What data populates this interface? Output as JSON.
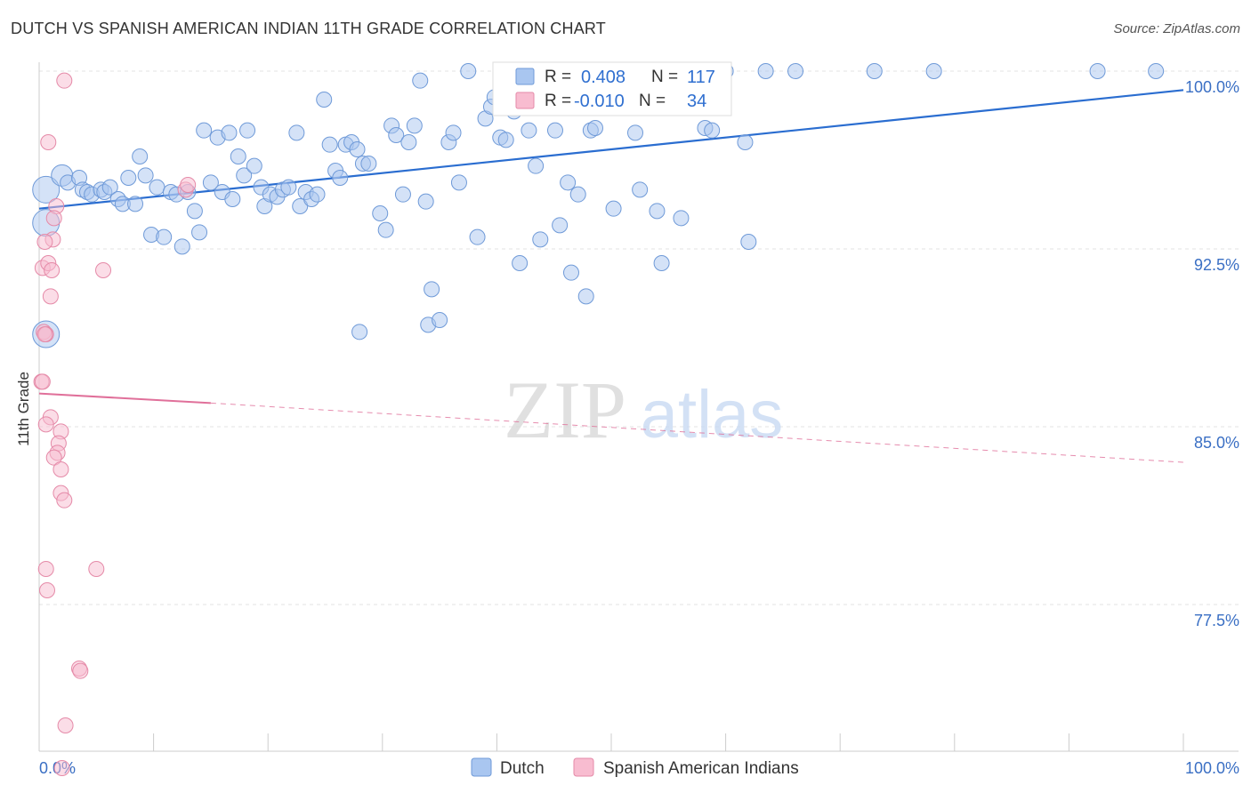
{
  "chart_data": {
    "type": "scatter",
    "title": "DUTCH VS SPANISH AMERICAN INDIAN 11TH GRADE CORRELATION CHART",
    "source": "Source: ZipAtlas.com",
    "ylabel": "11th Grade",
    "xlim": [
      0,
      100
    ],
    "ylim": [
      70.5,
      101.0
    ],
    "y_ticks": [
      100.0,
      92.5,
      85.0,
      77.5
    ],
    "y_tick_labels": [
      "100.0%",
      "92.5%",
      "85.0%",
      "77.5%"
    ],
    "x_tick_labels": [
      "0.0%",
      "100.0%"
    ],
    "watermark": {
      "part1": "ZIP",
      "part2": "atlas"
    },
    "legend": {
      "r_label": "R =",
      "n_label": "N =",
      "entries": [
        {
          "name": "Dutch",
          "r": "0.408",
          "n": "117",
          "color": "#a9c6f0",
          "stroke": "#6f9ad8"
        },
        {
          "name": "Spanish American Indians",
          "r": "-0.010",
          "n": "34",
          "color": "#f8bcd0",
          "stroke": "#e58aa8"
        }
      ]
    },
    "series": [
      {
        "name": "Dutch",
        "color": "#a9c6f0",
        "stroke": "#6f9ad8",
        "trend": {
          "x": [
            0,
            100
          ],
          "y": [
            94.2,
            99.2
          ],
          "color": "#2a6dd0"
        },
        "points": [
          [
            0.6,
            95.0,
            3
          ],
          [
            0.6,
            93.6,
            3
          ],
          [
            0.6,
            88.9,
            3
          ],
          [
            2.0,
            95.6,
            2
          ],
          [
            2.5,
            95.3,
            1
          ],
          [
            3.5,
            95.5,
            1
          ],
          [
            3.8,
            95.0,
            1
          ],
          [
            4.2,
            94.9,
            1
          ],
          [
            4.6,
            94.8,
            1
          ],
          [
            5.4,
            95.0,
            1
          ],
          [
            5.7,
            94.9,
            1
          ],
          [
            6.2,
            95.1,
            1
          ],
          [
            6.9,
            94.6,
            1
          ],
          [
            7.3,
            94.4,
            1
          ],
          [
            7.8,
            95.5,
            1
          ],
          [
            8.4,
            94.4,
            1
          ],
          [
            8.8,
            96.4,
            1
          ],
          [
            9.3,
            95.6,
            1
          ],
          [
            9.8,
            93.1,
            1
          ],
          [
            10.3,
            95.1,
            1
          ],
          [
            10.9,
            93.0,
            1
          ],
          [
            11.5,
            94.9,
            1
          ],
          [
            12.0,
            94.8,
            1
          ],
          [
            12.5,
            92.6,
            1
          ],
          [
            13.0,
            94.9,
            1
          ],
          [
            13.6,
            94.1,
            1
          ],
          [
            14.0,
            93.2,
            1
          ],
          [
            14.4,
            97.5,
            1
          ],
          [
            15.0,
            95.3,
            1
          ],
          [
            15.6,
            97.2,
            1
          ],
          [
            16.0,
            94.9,
            1
          ],
          [
            16.6,
            97.4,
            1
          ],
          [
            16.9,
            94.6,
            1
          ],
          [
            17.4,
            96.4,
            1
          ],
          [
            17.9,
            95.6,
            1
          ],
          [
            18.2,
            97.5,
            1
          ],
          [
            18.8,
            96.0,
            1
          ],
          [
            19.4,
            95.1,
            1
          ],
          [
            19.7,
            94.3,
            1
          ],
          [
            20.2,
            94.8,
            1
          ],
          [
            20.8,
            94.7,
            1
          ],
          [
            21.3,
            95.0,
            1
          ],
          [
            21.8,
            95.1,
            1
          ],
          [
            22.5,
            97.4,
            1
          ],
          [
            22.8,
            94.3,
            1
          ],
          [
            23.3,
            94.9,
            1
          ],
          [
            23.8,
            94.6,
            1
          ],
          [
            24.3,
            94.8,
            1
          ],
          [
            24.9,
            98.8,
            1
          ],
          [
            25.4,
            96.9,
            1
          ],
          [
            25.9,
            95.8,
            1
          ],
          [
            26.3,
            95.5,
            1
          ],
          [
            26.8,
            96.9,
            1
          ],
          [
            27.3,
            97.0,
            1
          ],
          [
            27.8,
            96.7,
            1
          ],
          [
            28.3,
            96.1,
            1
          ],
          [
            28.8,
            96.1,
            1
          ],
          [
            29.8,
            94.0,
            1
          ],
          [
            30.3,
            93.3,
            1
          ],
          [
            30.8,
            97.7,
            1
          ],
          [
            31.2,
            97.3,
            1
          ],
          [
            31.8,
            94.8,
            1
          ],
          [
            32.3,
            97.0,
            1
          ],
          [
            32.8,
            97.7,
            1
          ],
          [
            33.3,
            99.6,
            1
          ],
          [
            33.8,
            94.5,
            1
          ],
          [
            34.3,
            90.8,
            1
          ],
          [
            34.0,
            89.3,
            1
          ],
          [
            35.0,
            89.5,
            1
          ],
          [
            35.8,
            97.0,
            1
          ],
          [
            36.2,
            97.4,
            1
          ],
          [
            36.7,
            95.3,
            1
          ],
          [
            37.5,
            100.0,
            1
          ],
          [
            38.3,
            93.0,
            1
          ],
          [
            39.0,
            98.0,
            1
          ],
          [
            39.5,
            98.5,
            1
          ],
          [
            39.8,
            98.9,
            1
          ],
          [
            40.3,
            97.2,
            1
          ],
          [
            40.8,
            97.1,
            1
          ],
          [
            41.5,
            98.3,
            1
          ],
          [
            42.0,
            91.9,
            1
          ],
          [
            42.8,
            97.5,
            1
          ],
          [
            43.4,
            96.0,
            1
          ],
          [
            43.8,
            92.9,
            1
          ],
          [
            44.5,
            98.6,
            1
          ],
          [
            45.1,
            97.5,
            1
          ],
          [
            45.5,
            93.5,
            1
          ],
          [
            46.2,
            95.3,
            1
          ],
          [
            46.5,
            91.5,
            1
          ],
          [
            47.1,
            94.8,
            1
          ],
          [
            47.8,
            90.5,
            1
          ],
          [
            48.2,
            97.5,
            1
          ],
          [
            48.6,
            97.6,
            1
          ],
          [
            50.2,
            94.2,
            1
          ],
          [
            52.1,
            97.4,
            1
          ],
          [
            52.5,
            95.0,
            1
          ],
          [
            53.4,
            98.6,
            1
          ],
          [
            53.9,
            99.0,
            1
          ],
          [
            54.0,
            94.1,
            1
          ],
          [
            54.4,
            91.9,
            1
          ],
          [
            56.1,
            93.8,
            1
          ],
          [
            58.2,
            97.6,
            1
          ],
          [
            58.8,
            97.5,
            1
          ],
          [
            60.0,
            100.0,
            1
          ],
          [
            61.7,
            97.0,
            1
          ],
          [
            62.0,
            92.8,
            1
          ],
          [
            63.5,
            100.0,
            1
          ],
          [
            66.1,
            100.0,
            1
          ],
          [
            73.0,
            100.0,
            1
          ],
          [
            78.2,
            100.0,
            1
          ],
          [
            92.5,
            100.0,
            1
          ],
          [
            97.6,
            100.0,
            1
          ],
          [
            28.0,
            89.0,
            1
          ]
        ]
      },
      {
        "name": "Spanish American Indians",
        "color": "#f8bcd0",
        "stroke": "#e58aa8",
        "trend": {
          "x": [
            0,
            15
          ],
          "y": [
            86.4,
            86.0
          ],
          "color": "#e0709a",
          "dash_x": [
            15,
            100
          ],
          "dash_y": [
            86.0,
            83.5
          ]
        },
        "points": [
          [
            2.2,
            99.6,
            1
          ],
          [
            0.8,
            97.0,
            1
          ],
          [
            1.5,
            94.3,
            1
          ],
          [
            1.3,
            93.8,
            1
          ],
          [
            1.2,
            92.9,
            1
          ],
          [
            0.5,
            92.8,
            1
          ],
          [
            0.3,
            91.7,
            1
          ],
          [
            0.8,
            91.9,
            1
          ],
          [
            1.1,
            91.6,
            1
          ],
          [
            5.6,
            91.6,
            1
          ],
          [
            1.0,
            90.5,
            1
          ],
          [
            0.4,
            89.0,
            1
          ],
          [
            0.6,
            88.9,
            1
          ],
          [
            0.5,
            88.9,
            1
          ],
          [
            0.2,
            86.9,
            1
          ],
          [
            0.3,
            86.9,
            1
          ],
          [
            1.0,
            85.4,
            1
          ],
          [
            0.6,
            85.1,
            1
          ],
          [
            1.9,
            84.8,
            1
          ],
          [
            1.7,
            84.3,
            1
          ],
          [
            1.6,
            83.9,
            1
          ],
          [
            1.3,
            83.7,
            1
          ],
          [
            1.9,
            83.2,
            1
          ],
          [
            1.9,
            82.2,
            1
          ],
          [
            2.2,
            81.9,
            1
          ],
          [
            0.6,
            79.0,
            1
          ],
          [
            5.0,
            79.0,
            1
          ],
          [
            0.7,
            78.1,
            1
          ],
          [
            3.5,
            74.8,
            1
          ],
          [
            3.6,
            74.7,
            1
          ],
          [
            2.3,
            72.4,
            1
          ],
          [
            2.0,
            70.6,
            1
          ],
          [
            12.8,
            95.0,
            1
          ],
          [
            13.0,
            95.2,
            1
          ]
        ]
      }
    ]
  }
}
